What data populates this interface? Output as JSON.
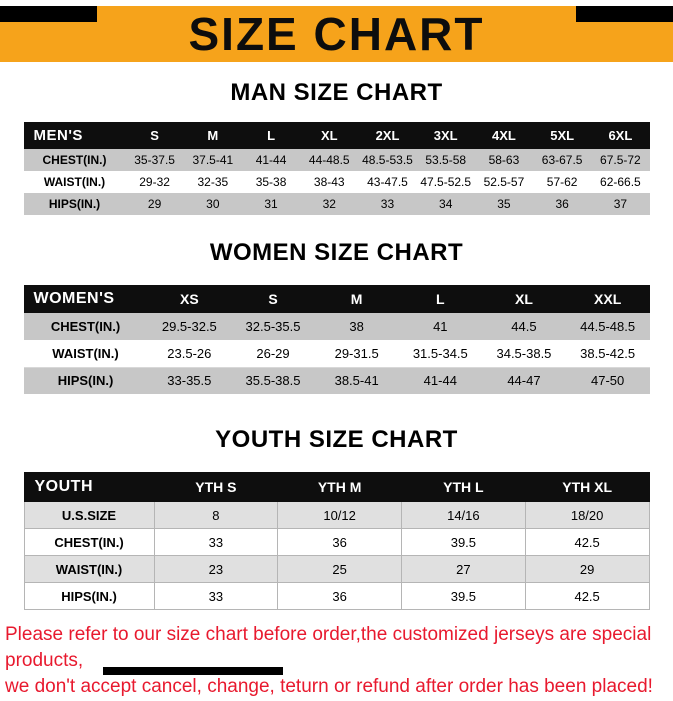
{
  "banner": {
    "title": "SIZE CHART",
    "background": "#F6A31B"
  },
  "sections": [
    {
      "heading": "MAN SIZE CHART",
      "table": {
        "header": [
          "MEN'S",
          "S",
          "M",
          "L",
          "XL",
          "2XL",
          "3XL",
          "4XL",
          "5XL",
          "6XL"
        ],
        "rows": [
          [
            "CHEST(IN.)",
            "35-37.5",
            "37.5-41",
            "41-44",
            "44-48.5",
            "48.5-53.5",
            "53.5-58",
            "58-63",
            "63-67.5",
            "67.5-72"
          ],
          [
            "WAIST(IN.)",
            "29-32",
            "32-35",
            "35-38",
            "38-43",
            "43-47.5",
            "47.5-52.5",
            "52.5-57",
            "57-62",
            "62-66.5"
          ],
          [
            "HIPS(IN.)",
            "29",
            "30",
            "31",
            "32",
            "33",
            "34",
            "35",
            "36",
            "37"
          ]
        ]
      }
    },
    {
      "heading": "WOMEN SIZE CHART",
      "table": {
        "header": [
          "WOMEN'S",
          "XS",
          "S",
          "M",
          "L",
          "XL",
          "XXL"
        ],
        "rows": [
          [
            "CHEST(IN.)",
            "29.5-32.5",
            "32.5-35.5",
            "38",
            "41",
            "44.5",
            "44.5-48.5"
          ],
          [
            "WAIST(IN.)",
            "23.5-26",
            "26-29",
            "29-31.5",
            "31.5-34.5",
            "34.5-38.5",
            "38.5-42.5"
          ],
          [
            "HIPS(IN.)",
            "33-35.5",
            "35.5-38.5",
            "38.5-41",
            "41-44",
            "44-47",
            "47-50"
          ]
        ]
      }
    },
    {
      "heading": "YOUTH SIZE CHART",
      "table": {
        "header": [
          "YOUTH",
          "YTH S",
          "YTH M",
          "YTH L",
          "YTH XL"
        ],
        "rows": [
          [
            "U.S.SIZE",
            "8",
            "10/12",
            "14/16",
            "18/20"
          ],
          [
            "CHEST(IN.)",
            "33",
            "36",
            "39.5",
            "42.5"
          ],
          [
            "WAIST(IN.)",
            "23",
            "25",
            "27",
            "29"
          ],
          [
            "HIPS(IN.)",
            "33",
            "36",
            "39.5",
            "42.5"
          ]
        ]
      }
    }
  ],
  "footer": {
    "line1": "Please refer to our size chart before order,the customized jerseys are special products,",
    "line2": "we don't accept cancel, change, teturn or refund after order has been placed!",
    "color": "#e8192e"
  }
}
